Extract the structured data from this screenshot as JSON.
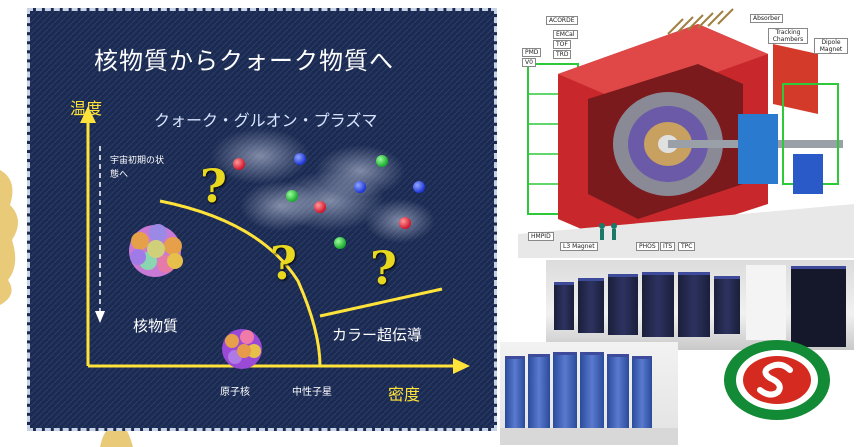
{
  "phase_diagram": {
    "title": "核物質からクォーク物質へ",
    "y_axis_label": "温度",
    "x_axis_label": "密度",
    "qgp_label": "クォーク・グルオン・プラズマ",
    "early_universe_note": "宇宙初期の状態へ",
    "nuclear_matter_label": "核物質",
    "color_superconductivity_label": "カラー超伝導",
    "nucleus_label": "原子核",
    "neutron_star_label": "中性子星",
    "question_mark": "?"
  },
  "detector": {
    "labels": [
      "ACORDE",
      "EMCal",
      "TOF",
      "TRD",
      "PMD",
      "V0",
      "Absorber",
      "Tracking Chambers",
      "Dipole Magnet",
      "HMPID",
      "L3 Magnet",
      "PHOS",
      "ITS",
      "TPC"
    ]
  },
  "colors": {
    "panel_bg": "#1b2a50",
    "axis_yellow": "#ffe23a",
    "question_yellow": "#e9d820",
    "magnet_red": "#c8282b",
    "structure_green": "#2ec83a",
    "logo_green": "#138a36",
    "logo_red": "#d42a1f"
  }
}
